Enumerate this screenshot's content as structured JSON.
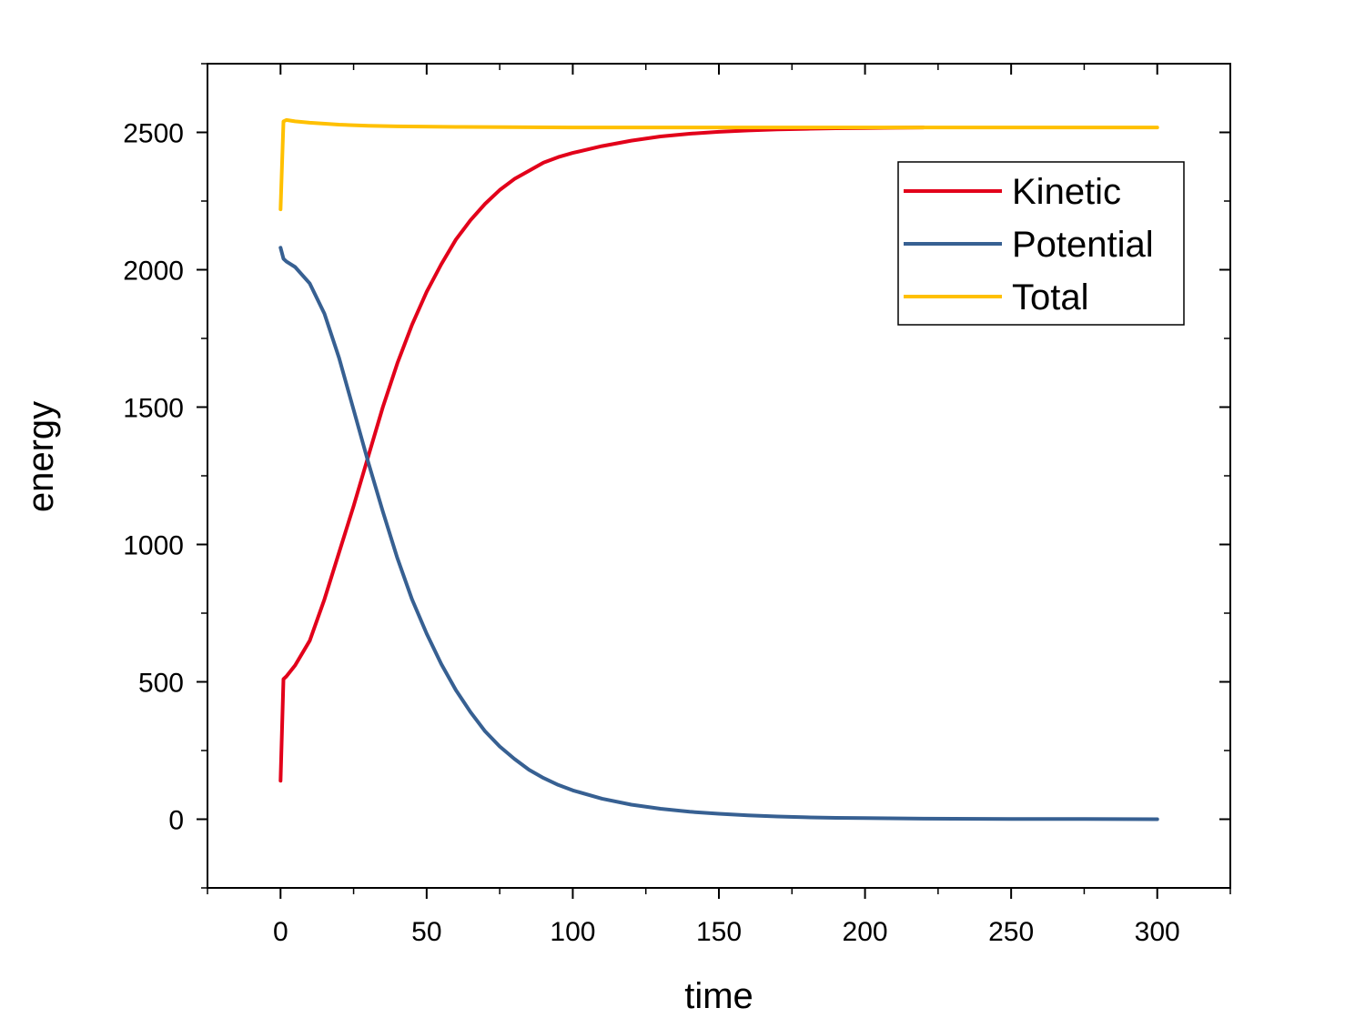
{
  "chart_data": {
    "type": "line",
    "title": "",
    "xlabel": "time",
    "ylabel": "energy",
    "xlim": [
      -25,
      325
    ],
    "ylim": [
      -250,
      2750
    ],
    "xticks": [
      0,
      50,
      100,
      150,
      200,
      250,
      300
    ],
    "yticks": [
      0,
      500,
      1000,
      1500,
      2000,
      2500
    ],
    "x_tick_labels": [
      "0",
      "50",
      "100",
      "150",
      "200",
      "250",
      "300"
    ],
    "y_tick_labels": [
      "0",
      "500",
      "1000",
      "1500",
      "2000",
      "2500"
    ],
    "grid": false,
    "legend_position": "top-right",
    "series": [
      {
        "name": "Kinetic",
        "color": "#e2001a",
        "x": [
          0,
          1,
          2,
          5,
          10,
          15,
          20,
          25,
          30,
          35,
          40,
          45,
          50,
          55,
          60,
          65,
          70,
          75,
          80,
          85,
          90,
          95,
          100,
          110,
          120,
          130,
          140,
          150,
          160,
          170,
          180,
          190,
          200,
          210,
          220
        ],
        "y": [
          140,
          510,
          520,
          560,
          650,
          800,
          970,
          1140,
          1320,
          1500,
          1660,
          1800,
          1920,
          2020,
          2110,
          2180,
          2240,
          2290,
          2330,
          2360,
          2390,
          2410,
          2425,
          2450,
          2470,
          2485,
          2495,
          2502,
          2507,
          2511,
          2513,
          2515,
          2516,
          2517,
          2518
        ]
      },
      {
        "name": "Potential",
        "color": "#376092",
        "x": [
          0,
          1,
          2,
          5,
          10,
          15,
          20,
          25,
          30,
          35,
          40,
          45,
          50,
          55,
          60,
          65,
          70,
          75,
          80,
          85,
          90,
          95,
          100,
          110,
          120,
          130,
          140,
          150,
          160,
          170,
          180,
          190,
          200,
          220,
          250,
          275,
          300
        ],
        "y": [
          2080,
          2040,
          2030,
          2010,
          1950,
          1840,
          1680,
          1490,
          1300,
          1120,
          950,
          800,
          675,
          565,
          470,
          390,
          320,
          265,
          220,
          180,
          150,
          125,
          105,
          75,
          53,
          38,
          27,
          20,
          14,
          10,
          7,
          5,
          4,
          2,
          1,
          1,
          0
        ]
      },
      {
        "name": "Total",
        "color": "#ffc000",
        "x": [
          0,
          1,
          2,
          5,
          10,
          20,
          30,
          40,
          60,
          100,
          150,
          200,
          250,
          300
        ],
        "y": [
          2220,
          2540,
          2545,
          2540,
          2535,
          2528,
          2524,
          2522,
          2520,
          2518,
          2518,
          2518,
          2518,
          2518
        ]
      }
    ]
  }
}
